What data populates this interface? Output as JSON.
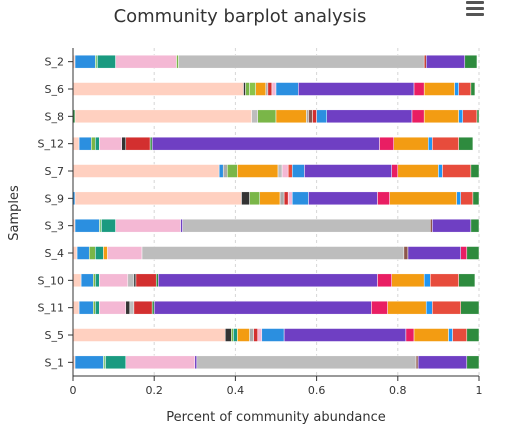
{
  "ui": {
    "menu_icon": "hamburger-menu-icon"
  },
  "chart_data": {
    "type": "bar",
    "orientation": "horizontal",
    "stacked": true,
    "title": "Community barplot analysis",
    "xlabel": "Percent of community abundance",
    "ylabel": "Samples",
    "xlim": [
      0,
      1
    ],
    "xticks": [
      0,
      0.2,
      0.4,
      0.6,
      0.8,
      1
    ],
    "xtick_labels": [
      "0",
      "0.2",
      "0.4",
      "0.6",
      "0.8",
      "1"
    ],
    "grid": "vertical dashed",
    "categories": [
      "S_2",
      "S_6",
      "S_8",
      "S_12",
      "S_7",
      "S_9",
      "S_3",
      "S_4",
      "S_10",
      "S_11",
      "S_5",
      "S_1"
    ],
    "segments": [
      [
        {
          "value": 0.005,
          "color": "#ffd0c0"
        },
        {
          "value": 0.05,
          "color": "#2b8fe0"
        },
        {
          "value": 0.005,
          "color": "#7fc97f"
        },
        {
          "value": 0.045,
          "color": "#1a9a80"
        },
        {
          "value": 0.15,
          "color": "#f4b8d4"
        },
        {
          "value": 0.005,
          "color": "#7ab648"
        },
        {
          "value": 0.605,
          "color": "#bdbdbd"
        },
        {
          "value": 0.005,
          "color": "#c0392b"
        },
        {
          "value": 0.095,
          "color": "#6f3fc3"
        },
        {
          "value": 0.03,
          "color": "#2e8b3e"
        }
      ],
      [
        {
          "value": 0.42,
          "color": "#ffd0c0"
        },
        {
          "value": 0.005,
          "color": "#333333"
        },
        {
          "value": 0.01,
          "color": "#7ab648"
        },
        {
          "value": 0.015,
          "color": "#8bc34a"
        },
        {
          "value": 0.025,
          "color": "#f39c12"
        },
        {
          "value": 0.005,
          "color": "#aaaaaa"
        },
        {
          "value": 0.01,
          "color": "#d32f2f"
        },
        {
          "value": 0.01,
          "color": "#f4b8d4"
        },
        {
          "value": 0.055,
          "color": "#2b8fe0"
        },
        {
          "value": 0.285,
          "color": "#6f3fc3"
        },
        {
          "value": 0.025,
          "color": "#e91e63"
        },
        {
          "value": 0.075,
          "color": "#f39c12"
        },
        {
          "value": 0.01,
          "color": "#2196f3"
        },
        {
          "value": 0.03,
          "color": "#e74c3c"
        },
        {
          "value": 0.01,
          "color": "#2e8b3e"
        }
      ],
      [
        {
          "value": 0.005,
          "color": "#2e8b3e"
        },
        {
          "value": 0.435,
          "color": "#ffd0c0"
        },
        {
          "value": 0.015,
          "color": "#bdbdbd"
        },
        {
          "value": 0.045,
          "color": "#7ab648"
        },
        {
          "value": 0.075,
          "color": "#f39c12"
        },
        {
          "value": 0.005,
          "color": "#aaaaaa"
        },
        {
          "value": 0.01,
          "color": "#8c564b"
        },
        {
          "value": 0.01,
          "color": "#d32f2f"
        },
        {
          "value": 0.025,
          "color": "#2b8fe0"
        },
        {
          "value": 0.21,
          "color": "#6f3fc3"
        },
        {
          "value": 0.03,
          "color": "#e91e63"
        },
        {
          "value": 0.085,
          "color": "#f39c12"
        },
        {
          "value": 0.01,
          "color": "#2196f3"
        },
        {
          "value": 0.035,
          "color": "#e74c3c"
        },
        {
          "value": 0.005,
          "color": "#2e8b3e"
        }
      ],
      [
        {
          "value": 0.015,
          "color": "#ffd0c0"
        },
        {
          "value": 0.03,
          "color": "#2b8fe0"
        },
        {
          "value": 0.01,
          "color": "#7ab648"
        },
        {
          "value": 0.01,
          "color": "#1a9a80"
        },
        {
          "value": 0.055,
          "color": "#f4b8d4"
        },
        {
          "value": 0.01,
          "color": "#333333"
        },
        {
          "value": 0.06,
          "color": "#d32f2f"
        },
        {
          "value": 0.005,
          "color": "#2e8b3e"
        },
        {
          "value": 0.56,
          "color": "#6f3fc3"
        },
        {
          "value": 0.035,
          "color": "#e91e63"
        },
        {
          "value": 0.085,
          "color": "#f39c12"
        },
        {
          "value": 0.01,
          "color": "#2196f3"
        },
        {
          "value": 0.065,
          "color": "#e74c3c"
        },
        {
          "value": 0.035,
          "color": "#2e8b3e"
        }
      ],
      [
        {
          "value": 0.36,
          "color": "#ffd0c0"
        },
        {
          "value": 0.01,
          "color": "#2b8fe0"
        },
        {
          "value": 0.01,
          "color": "#aaaaaa"
        },
        {
          "value": 0.025,
          "color": "#7ab648"
        },
        {
          "value": 0.1,
          "color": "#f39c12"
        },
        {
          "value": 0.01,
          "color": "#bdbdbd"
        },
        {
          "value": 0.015,
          "color": "#f4b8d4"
        },
        {
          "value": 0.01,
          "color": "#e74c3c"
        },
        {
          "value": 0.03,
          "color": "#2b8fe0"
        },
        {
          "value": 0.215,
          "color": "#6f3fc3"
        },
        {
          "value": 0.015,
          "color": "#e91e63"
        },
        {
          "value": 0.1,
          "color": "#f39c12"
        },
        {
          "value": 0.01,
          "color": "#2196f3"
        },
        {
          "value": 0.07,
          "color": "#e74c3c"
        },
        {
          "value": 0.02,
          "color": "#2e8b3e"
        }
      ],
      [
        {
          "value": 0.005,
          "color": "#2b8fe0"
        },
        {
          "value": 0.41,
          "color": "#ffd0c0"
        },
        {
          "value": 0.02,
          "color": "#333333"
        },
        {
          "value": 0.025,
          "color": "#7ab648"
        },
        {
          "value": 0.05,
          "color": "#f39c12"
        },
        {
          "value": 0.01,
          "color": "#aaaaaa"
        },
        {
          "value": 0.01,
          "color": "#d32f2f"
        },
        {
          "value": 0.01,
          "color": "#f4b8d4"
        },
        {
          "value": 0.04,
          "color": "#2b8fe0"
        },
        {
          "value": 0.17,
          "color": "#6f3fc3"
        },
        {
          "value": 0.03,
          "color": "#e91e63"
        },
        {
          "value": 0.165,
          "color": "#f39c12"
        },
        {
          "value": 0.01,
          "color": "#2196f3"
        },
        {
          "value": 0.03,
          "color": "#e74c3c"
        },
        {
          "value": 0.015,
          "color": "#2e8b3e"
        }
      ],
      [
        {
          "value": 0.005,
          "color": "#ffd0c0"
        },
        {
          "value": 0.06,
          "color": "#2b8fe0"
        },
        {
          "value": 0.005,
          "color": "#7fc97f"
        },
        {
          "value": 0.035,
          "color": "#1a9a80"
        },
        {
          "value": 0.16,
          "color": "#f4b8d4"
        },
        {
          "value": 0.005,
          "color": "#6f3fc3"
        },
        {
          "value": 0.61,
          "color": "#bdbdbd"
        },
        {
          "value": 0.005,
          "color": "#8c564b"
        },
        {
          "value": 0.095,
          "color": "#6f3fc3"
        },
        {
          "value": 0.02,
          "color": "#2e8b3e"
        }
      ],
      [
        {
          "value": 0.01,
          "color": "#ffd0c0"
        },
        {
          "value": 0.03,
          "color": "#2b8fe0"
        },
        {
          "value": 0.015,
          "color": "#7ab648"
        },
        {
          "value": 0.02,
          "color": "#1a9a80"
        },
        {
          "value": 0.01,
          "color": "#f39c12"
        },
        {
          "value": 0.085,
          "color": "#f4b8d4"
        },
        {
          "value": 0.645,
          "color": "#bdbdbd"
        },
        {
          "value": 0.01,
          "color": "#8c564b"
        },
        {
          "value": 0.13,
          "color": "#6f3fc3"
        },
        {
          "value": 0.015,
          "color": "#e91e63"
        },
        {
          "value": 0.03,
          "color": "#2e8b3e"
        }
      ],
      [
        {
          "value": 0.02,
          "color": "#ffd0c0"
        },
        {
          "value": 0.03,
          "color": "#2b8fe0"
        },
        {
          "value": 0.005,
          "color": "#7ab648"
        },
        {
          "value": 0.01,
          "color": "#1a9a80"
        },
        {
          "value": 0.07,
          "color": "#f4b8d4"
        },
        {
          "value": 0.015,
          "color": "#bdbdbd"
        },
        {
          "value": 0.005,
          "color": "#333333"
        },
        {
          "value": 0.05,
          "color": "#d32f2f"
        },
        {
          "value": 0.005,
          "color": "#2e8b3e"
        },
        {
          "value": 0.54,
          "color": "#6f3fc3"
        },
        {
          "value": 0.035,
          "color": "#e91e63"
        },
        {
          "value": 0.08,
          "color": "#f39c12"
        },
        {
          "value": 0.015,
          "color": "#2196f3"
        },
        {
          "value": 0.07,
          "color": "#e74c3c"
        },
        {
          "value": 0.04,
          "color": "#2e8b3e"
        }
      ],
      [
        {
          "value": 0.015,
          "color": "#ffd0c0"
        },
        {
          "value": 0.035,
          "color": "#2b8fe0"
        },
        {
          "value": 0.005,
          "color": "#7ab648"
        },
        {
          "value": 0.01,
          "color": "#1a9a80"
        },
        {
          "value": 0.065,
          "color": "#f4b8d4"
        },
        {
          "value": 0.01,
          "color": "#333333"
        },
        {
          "value": 0.01,
          "color": "#bdbdbd"
        },
        {
          "value": 0.045,
          "color": "#d32f2f"
        },
        {
          "value": 0.005,
          "color": "#2e8b3e"
        },
        {
          "value": 0.535,
          "color": "#6f3fc3"
        },
        {
          "value": 0.04,
          "color": "#e91e63"
        },
        {
          "value": 0.095,
          "color": "#f39c12"
        },
        {
          "value": 0.015,
          "color": "#2196f3"
        },
        {
          "value": 0.07,
          "color": "#e74c3c"
        },
        {
          "value": 0.045,
          "color": "#2e8b3e"
        }
      ],
      [
        {
          "value": 0.375,
          "color": "#ffd0c0"
        },
        {
          "value": 0.015,
          "color": "#333333"
        },
        {
          "value": 0.005,
          "color": "#7ab648"
        },
        {
          "value": 0.01,
          "color": "#1a9a80"
        },
        {
          "value": 0.03,
          "color": "#f39c12"
        },
        {
          "value": 0.01,
          "color": "#aaaaaa"
        },
        {
          "value": 0.01,
          "color": "#d32f2f"
        },
        {
          "value": 0.01,
          "color": "#f4b8d4"
        },
        {
          "value": 0.055,
          "color": "#2b8fe0"
        },
        {
          "value": 0.3,
          "color": "#6f3fc3"
        },
        {
          "value": 0.02,
          "color": "#e91e63"
        },
        {
          "value": 0.085,
          "color": "#f39c12"
        },
        {
          "value": 0.01,
          "color": "#2196f3"
        },
        {
          "value": 0.035,
          "color": "#e74c3c"
        },
        {
          "value": 0.03,
          "color": "#2e8b3e"
        }
      ],
      [
        {
          "value": 0.005,
          "color": "#ffd0c0"
        },
        {
          "value": 0.07,
          "color": "#2b8fe0"
        },
        {
          "value": 0.005,
          "color": "#7fc97f"
        },
        {
          "value": 0.05,
          "color": "#1a9a80"
        },
        {
          "value": 0.17,
          "color": "#f4b8d4"
        },
        {
          "value": 0.005,
          "color": "#6f3fc3"
        },
        {
          "value": 0.54,
          "color": "#bdbdbd"
        },
        {
          "value": 0.005,
          "color": "#8c564b"
        },
        {
          "value": 0.12,
          "color": "#6f3fc3"
        },
        {
          "value": 0.03,
          "color": "#2e8b3e"
        }
      ]
    ]
  }
}
